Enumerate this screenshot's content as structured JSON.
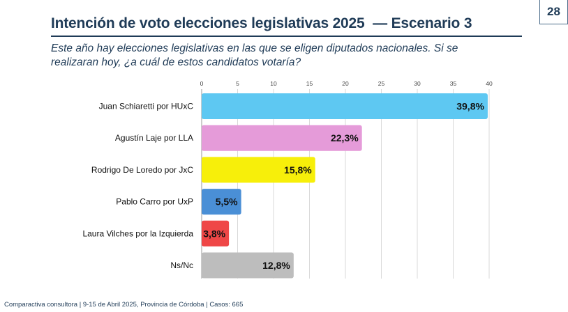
{
  "header": {
    "title": "Intención de voto elecciones legislativas 2025",
    "separator": "—",
    "scenario": "Escenario 3",
    "page_number": "28"
  },
  "subtitle": {
    "line1": "Este año hay elecciones legislativas en las que se eligen diputados nacionales. Si se",
    "line2": "realizaran hoy, ¿a cuál de estos candidatos votaría?"
  },
  "chart_data": {
    "type": "bar",
    "orientation": "horizontal",
    "title": "Intención de voto elecciones legislativas 2025 — Escenario 3",
    "categories": [
      "Juan Schiaretti por HUxC",
      "Agustín Laje por LLA",
      "Rodrigo De Loredo por JxC",
      "Pablo Carro por UxP",
      "Laura Vilches por la Izquierda",
      "Ns/Nc"
    ],
    "values": [
      39.8,
      22.3,
      15.8,
      5.5,
      3.8,
      12.8
    ],
    "labels": [
      "39,8%",
      "22,3%",
      "15,8%",
      "5,5%",
      "3,8%",
      "12,8%"
    ],
    "colors": [
      "#5ec8f2",
      "#e59bd9",
      "#f7ef0a",
      "#4a8fd6",
      "#ef4747",
      "#bdbdbd"
    ],
    "xlim": [
      0,
      40
    ],
    "xticks": [
      0,
      5,
      10,
      15,
      20,
      25,
      30,
      35,
      40
    ],
    "xtick_labels": [
      "0",
      "5",
      "10",
      "15",
      "20",
      "25",
      "30",
      "35",
      "40"
    ],
    "grid": true,
    "axis_position": "top",
    "xlabel": "",
    "ylabel": ""
  },
  "footer": {
    "source": "Comparactiva consultora | 9-15 de Abril 2025, Provincia de Córdoba | Casos: 665"
  }
}
